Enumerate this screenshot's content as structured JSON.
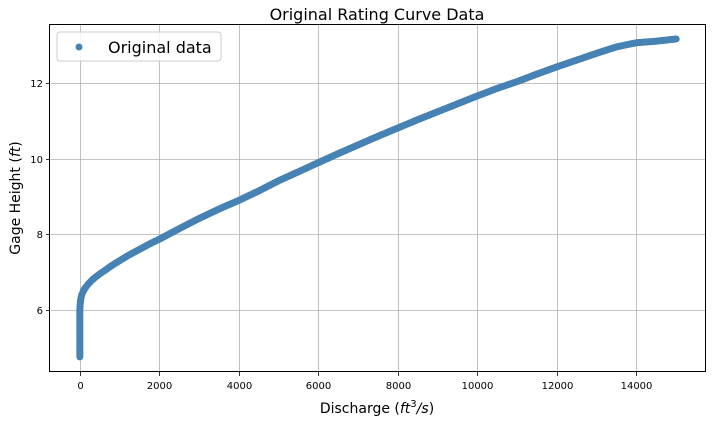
{
  "chart_data": {
    "type": "scatter",
    "title": "Original Rating Curve Data",
    "xlabel": "Discharge",
    "xlabel_unit_base": "ft",
    "xlabel_unit_exp": "3",
    "xlabel_unit_tail": "/s",
    "ylabel": "Gage Height",
    "ylabel_unit": "ft",
    "xlim": [
      -750,
      15750
    ],
    "ylim": [
      4.35,
      13.55
    ],
    "xticks": [
      0,
      2000,
      4000,
      6000,
      8000,
      10000,
      12000,
      14000
    ],
    "yticks": [
      6,
      8,
      10,
      12
    ],
    "grid": true,
    "legend_position": "top-left",
    "color": "#4682b4",
    "series": [
      {
        "name": "Original data",
        "x": [
          0,
          0,
          0,
          0,
          0,
          0,
          0,
          0,
          0,
          0,
          5,
          10,
          20,
          30,
          50,
          70,
          100,
          150,
          200,
          300,
          400,
          500,
          600,
          800,
          1000,
          1200,
          1500,
          1800,
          2000,
          2500,
          3000,
          3500,
          4000,
          4500,
          5000,
          5500,
          6000,
          6500,
          7000,
          7500,
          8000,
          8500,
          9000,
          9500,
          10000,
          10500,
          11000,
          11500,
          12000,
          12500,
          13000,
          13500,
          14000,
          14500,
          15000
        ],
        "y": [
          4.75,
          4.9,
          5.05,
          5.2,
          5.35,
          5.5,
          5.65,
          5.8,
          5.9,
          6.0,
          6.08,
          6.15,
          6.25,
          6.32,
          6.4,
          6.45,
          6.52,
          6.6,
          6.67,
          6.78,
          6.87,
          6.95,
          7.02,
          7.17,
          7.3,
          7.43,
          7.6,
          7.77,
          7.87,
          8.15,
          8.42,
          8.67,
          8.9,
          9.15,
          9.42,
          9.66,
          9.9,
          10.14,
          10.37,
          10.6,
          10.82,
          11.04,
          11.25,
          11.46,
          11.67,
          11.87,
          12.05,
          12.25,
          12.44,
          12.62,
          12.8,
          12.97,
          13.08,
          13.12,
          13.18
        ]
      }
    ]
  }
}
